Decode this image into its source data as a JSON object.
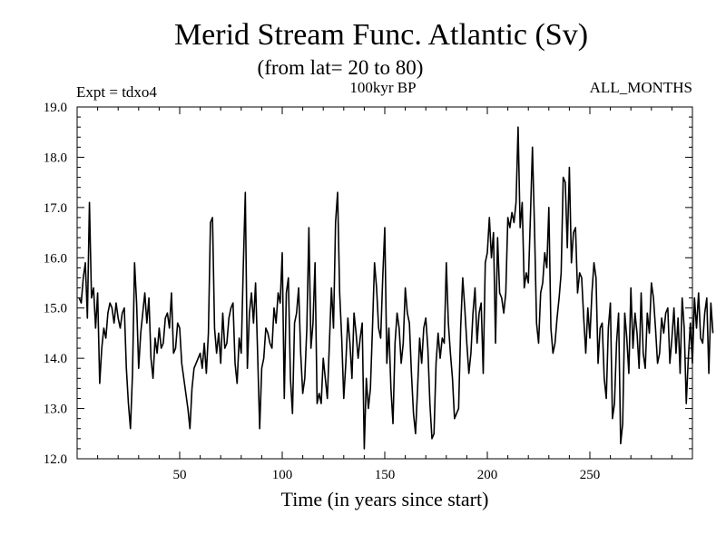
{
  "chart_data": {
    "type": "line",
    "title": "Merid Stream Func. Atlantic (Sv)",
    "subtitle": "(from lat= 20 to 80)",
    "annotation_left": "Expt = tdxo4",
    "annotation_center": "100kyr BP",
    "annotation_right": "ALL_MONTHS",
    "xlabel": "Time (in years since start)",
    "ylabel": "",
    "xlim": [
      0,
      300
    ],
    "ylim": [
      12.0,
      19.0
    ],
    "x_ticks": [
      50,
      100,
      150,
      200,
      250
    ],
    "x_tick_labels": [
      "50",
      "100",
      "150",
      "200",
      "250"
    ],
    "y_ticks": [
      12.0,
      13.0,
      14.0,
      15.0,
      16.0,
      17.0,
      18.0,
      19.0
    ],
    "y_tick_labels": [
      "12.0",
      "13.0",
      "14.0",
      "15.0",
      "16.0",
      "17.0",
      "18.0",
      "19.0"
    ],
    "grid": false,
    "series": [
      {
        "x_start": 1,
        "x_step": 1,
        "values": [
          15.2,
          15.1,
          15.6,
          15.9,
          14.8,
          17.1,
          15.2,
          15.4,
          14.6,
          15.3,
          13.5,
          14.2,
          14.6,
          14.4,
          14.9,
          15.1,
          15.0,
          14.7,
          15.1,
          14.8,
          14.6,
          14.9,
          15.0,
          13.8,
          13.1,
          12.6,
          13.7,
          15.9,
          15.1,
          13.8,
          14.5,
          14.9,
          15.3,
          14.7,
          15.2,
          14.0,
          13.6,
          14.4,
          14.1,
          14.6,
          14.2,
          14.3,
          14.8,
          14.9,
          14.6,
          15.3,
          14.1,
          14.2,
          14.7,
          14.6,
          13.9,
          13.6,
          13.3,
          13.0,
          12.6,
          13.4,
          13.8,
          13.9,
          14.0,
          14.1,
          13.8,
          14.3,
          13.7,
          14.5,
          16.7,
          16.8,
          14.6,
          14.1,
          14.5,
          13.9,
          14.9,
          14.2,
          14.3,
          14.8,
          15.0,
          15.1,
          13.9,
          13.5,
          14.4,
          14.1,
          15.8,
          17.3,
          13.8,
          14.9,
          15.3,
          14.7,
          15.5,
          14.1,
          12.6,
          13.8,
          14.0,
          14.6,
          14.5,
          14.3,
          14.2,
          15.0,
          14.7,
          15.3,
          15.1,
          16.1,
          13.2,
          15.3,
          15.6,
          13.6,
          12.9,
          14.7,
          14.9,
          15.4,
          14.1,
          13.3,
          13.6,
          14.6,
          16.6,
          14.2,
          14.7,
          15.9,
          13.1,
          13.3,
          13.1,
          14.0,
          13.6,
          13.2,
          14.3,
          15.4,
          14.6,
          16.7,
          17.3,
          15.3,
          14.4,
          13.2,
          13.9,
          14.8,
          14.3,
          13.6,
          14.9,
          14.5,
          14.0,
          14.4,
          14.7,
          12.2,
          13.6,
          13.0,
          13.4,
          14.6,
          15.9,
          15.4,
          14.6,
          14.4,
          15.6,
          16.6,
          13.9,
          14.6,
          13.4,
          12.7,
          14.3,
          14.9,
          14.6,
          13.9,
          14.3,
          15.4,
          14.9,
          14.7,
          13.7,
          12.9,
          12.5,
          13.4,
          14.4,
          13.9,
          14.6,
          14.8,
          14.2,
          13.1,
          12.4,
          12.5,
          13.9,
          14.5,
          14.0,
          14.4,
          14.3,
          15.9,
          14.7,
          14.1,
          13.6,
          12.8,
          12.9,
          13.0,
          14.6,
          15.6,
          15.0,
          14.3,
          13.7,
          14.1,
          14.9,
          15.4,
          14.3,
          14.9,
          15.1,
          13.7,
          15.9,
          16.1,
          16.8,
          16.0,
          16.5,
          14.3,
          16.4,
          15.3,
          15.2,
          14.9,
          15.3,
          16.8,
          16.6,
          16.9,
          16.7,
          17.1,
          18.6,
          16.6,
          17.1,
          15.4,
          15.7,
          15.5,
          16.8,
          18.2,
          16.6,
          14.7,
          14.3,
          15.3,
          15.5,
          16.1,
          15.8,
          17.0,
          14.6,
          14.1,
          14.3,
          14.8,
          15.2,
          15.7,
          17.6,
          17.5,
          16.2,
          17.8,
          15.9,
          16.5,
          16.6,
          15.3,
          15.7,
          15.6,
          14.8,
          14.1,
          15.0,
          14.4,
          15.3,
          15.9,
          15.6,
          13.9,
          14.6,
          14.7,
          13.6,
          13.2,
          14.6,
          15.1,
          12.8,
          13.1,
          14.3,
          14.9,
          12.3,
          12.7,
          14.9,
          14.4,
          13.7,
          15.4,
          14.2,
          14.9,
          14.5,
          13.8,
          15.3,
          14.1,
          13.8,
          14.9,
          14.5,
          15.5,
          15.2,
          14.6,
          13.9,
          14.1,
          14.8,
          14.5,
          14.9,
          15.0,
          13.9,
          14.4,
          15.0,
          14.1,
          14.8,
          13.7,
          15.2,
          14.6,
          13.1,
          14.0,
          14.7,
          13.9,
          15.2,
          14.6,
          15.3,
          14.4,
          14.3,
          14.9,
          15.2,
          13.7,
          15.1,
          14.5
        ]
      }
    ]
  }
}
